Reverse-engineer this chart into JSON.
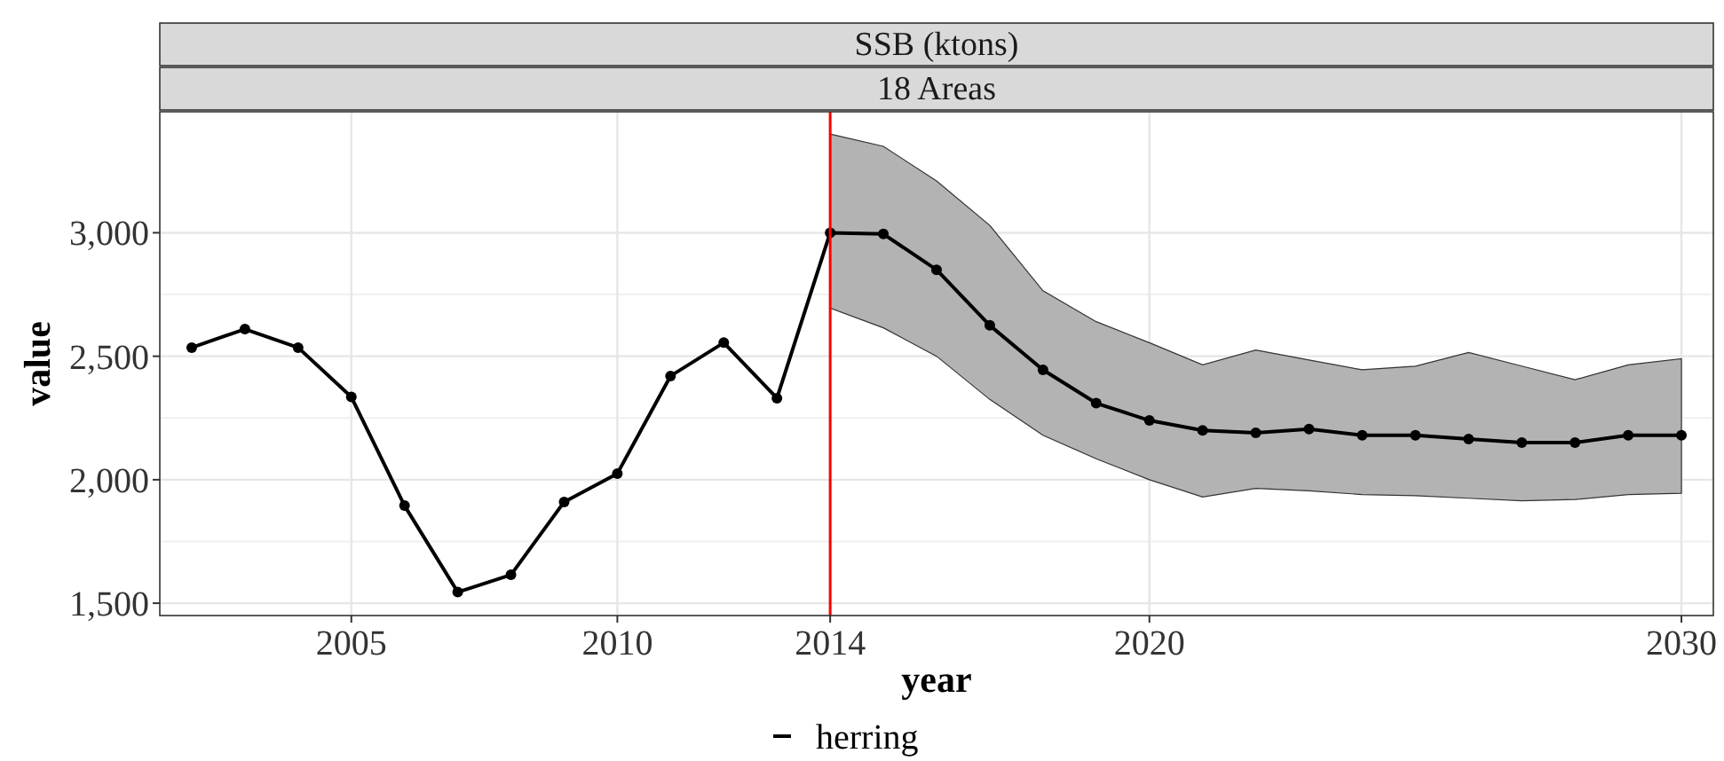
{
  "chart_data": {
    "type": "line",
    "title": "SSB (ktons)",
    "subtitle": "18 Areas",
    "xlabel": "year",
    "ylabel": "value",
    "x": [
      2002,
      2003,
      2004,
      2005,
      2006,
      2007,
      2008,
      2009,
      2010,
      2011,
      2012,
      2013,
      2014,
      2015,
      2016,
      2017,
      2018,
      2019,
      2020,
      2021,
      2022,
      2023,
      2024,
      2025,
      2026,
      2027,
      2028,
      2029,
      2030
    ],
    "series": [
      {
        "name": "herring",
        "color": "#000000",
        "values": [
          2535,
          2610,
          2535,
          2335,
          1895,
          1545,
          1615,
          1910,
          2025,
          2420,
          2555,
          2330,
          3000,
          2995,
          2850,
          2625,
          2445,
          2310,
          2240,
          2200,
          2190,
          2205,
          2180,
          2180,
          2165,
          2150,
          2150,
          2180,
          2180
        ],
        "lower": [
          null,
          null,
          null,
          null,
          null,
          null,
          null,
          null,
          null,
          null,
          null,
          null,
          2695,
          2615,
          2500,
          2325,
          2180,
          2085,
          2000,
          1930,
          1965,
          1955,
          1940,
          1935,
          1925,
          1915,
          1920,
          1940,
          1945
        ],
        "upper": [
          null,
          null,
          null,
          null,
          null,
          null,
          null,
          null,
          null,
          null,
          null,
          null,
          3400,
          3350,
          3210,
          3030,
          2765,
          2640,
          2555,
          2465,
          2525,
          2485,
          2445,
          2460,
          2515,
          2460,
          2405,
          2465,
          2490
        ]
      }
    ],
    "xlim": [
      2001.4,
      2030.6
    ],
    "xticks": [
      2005,
      2010,
      2014,
      2020,
      2030
    ],
    "ylim": [
      1450,
      3490
    ],
    "yticks": [
      {
        "value": 1500,
        "label": "1,500"
      },
      {
        "value": 2000,
        "label": "2,000"
      },
      {
        "value": 2500,
        "label": "2,500"
      },
      {
        "value": 3000,
        "label": "3,000"
      }
    ],
    "ref_lines": [
      {
        "axis": "x",
        "value": 2014,
        "color": "#ff0000"
      }
    ],
    "grid": true,
    "legend": "bottom",
    "marker": "circle",
    "line_style": "solid"
  }
}
